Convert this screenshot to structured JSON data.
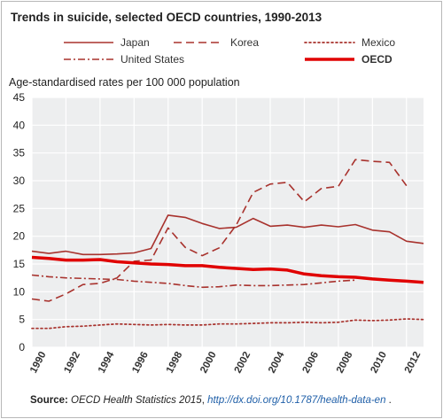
{
  "title": "Trends in suicide, selected OECD countries, 1990-2013",
  "source": {
    "label": "Source:",
    "pub": "OECD Health Statistics 2015",
    "sep": ", ",
    "link": "http://dx.doi.org/10.1787/health-data-en",
    "end": " ."
  },
  "colors": {
    "background": "#edeeef",
    "series": "#a8322d",
    "oecd": "#e00000",
    "grid": "#ffffff"
  },
  "chart_data": {
    "type": "line",
    "title": "Trends in suicide, selected OECD countries, 1990-2013",
    "xlabel": "",
    "ylabel": "Age-standardised rates per 100 000 population",
    "ylim": [
      0,
      45
    ],
    "xlim": [
      1990,
      2013
    ],
    "yticks": [
      "0",
      "5",
      "10",
      "15",
      "20",
      "25",
      "30",
      "35",
      "40",
      "45"
    ],
    "xticks": [
      "1990",
      "1992",
      "1994",
      "1996",
      "1998",
      "2000",
      "2002",
      "2004",
      "2006",
      "2008",
      "2010",
      "2012"
    ],
    "grid": true,
    "legend": "top",
    "x": [
      1990,
      1991,
      1992,
      1993,
      1994,
      1995,
      1996,
      1997,
      1998,
      1999,
      2000,
      2001,
      2002,
      2003,
      2004,
      2005,
      2006,
      2007,
      2008,
      2009,
      2010,
      2011,
      2012,
      2013
    ],
    "series": [
      {
        "name": "Japan",
        "style": "solid",
        "values": [
          17.3,
          16.9,
          17.3,
          16.7,
          16.7,
          16.8,
          17.0,
          17.8,
          23.8,
          23.4,
          22.3,
          21.4,
          21.6,
          23.2,
          21.8,
          22.0,
          21.6,
          22.0,
          21.7,
          22.1,
          21.1,
          20.8,
          19.1,
          18.7
        ]
      },
      {
        "name": "Korea",
        "style": "dash",
        "values": [
          8.7,
          8.3,
          9.6,
          11.3,
          11.5,
          12.5,
          15.5,
          15.7,
          21.5,
          18.0,
          16.5,
          17.9,
          22.0,
          27.9,
          29.4,
          29.7,
          26.2,
          28.6,
          29.0,
          33.8,
          33.5,
          33.3,
          29.1,
          null
        ]
      },
      {
        "name": "Mexico",
        "style": "dot",
        "values": [
          3.4,
          3.4,
          3.7,
          3.8,
          4.0,
          4.2,
          4.1,
          4.0,
          4.1,
          4.0,
          4.0,
          4.2,
          4.2,
          4.3,
          4.4,
          4.4,
          4.5,
          4.4,
          4.5,
          4.9,
          4.8,
          4.9,
          5.1,
          5.0
        ]
      },
      {
        "name": "United States",
        "style": "dashdot",
        "values": [
          13.0,
          12.7,
          12.5,
          12.4,
          12.3,
          12.2,
          11.9,
          11.7,
          11.5,
          11.1,
          10.8,
          10.9,
          11.2,
          11.1,
          11.1,
          11.2,
          11.3,
          11.6,
          11.9,
          12.1,
          null,
          null,
          null,
          null
        ]
      },
      {
        "name": "OECD",
        "style": "thick",
        "values": [
          16.2,
          16.0,
          15.7,
          15.7,
          15.8,
          15.4,
          15.2,
          15.0,
          14.9,
          14.7,
          14.7,
          14.4,
          14.2,
          14.0,
          14.1,
          13.9,
          13.2,
          12.9,
          12.7,
          12.6,
          12.3,
          12.1,
          11.9,
          11.7
        ]
      }
    ]
  }
}
